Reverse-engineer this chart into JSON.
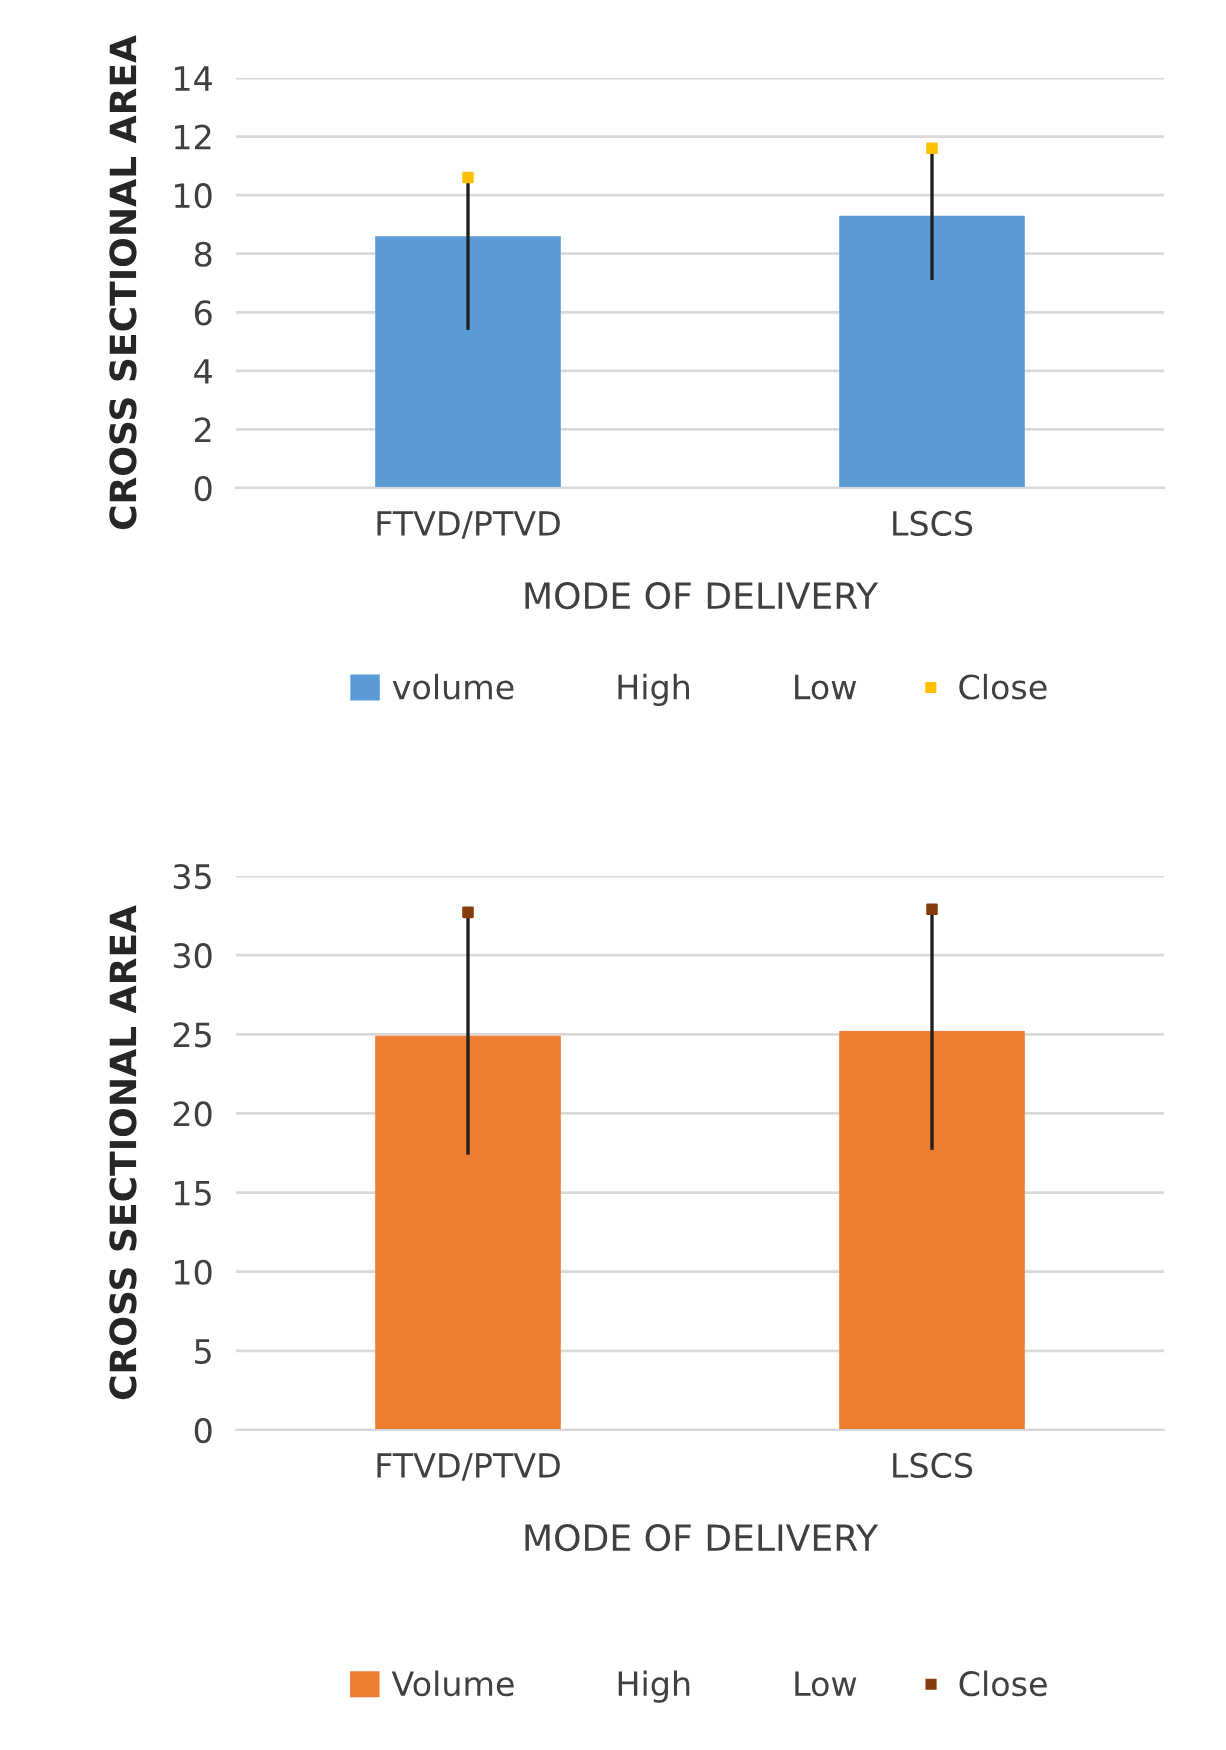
{
  "chart_data": [
    {
      "type": "bar",
      "xlabel": "MODE OF DELIVERY",
      "ylabel": "CROSS SECTIONAL AREA",
      "categories": [
        "FTVD/PTVD",
        "LSCS"
      ],
      "ylim": [
        0,
        14
      ],
      "yticks": [
        0,
        2,
        4,
        6,
        8,
        10,
        12,
        14
      ],
      "grid": "y",
      "legend": "bottom",
      "annotations": [
        "High",
        "Low"
      ],
      "series": [
        {
          "name": "volume",
          "color": "#5b9bd5",
          "values": [
            8.6,
            9.3
          ],
          "errors": [
            [
              5.4,
              10.6
            ],
            [
              7.1,
              11.6
            ]
          ]
        },
        {
          "name": "Close",
          "type": "scatter",
          "marker": "square",
          "color": "#ffc000",
          "values": [
            10.6,
            11.6
          ]
        }
      ]
    },
    {
      "type": "bar",
      "xlabel": "MODE OF DELIVERY",
      "ylabel": "CROSS SECTIONAL AREA",
      "categories": [
        "FTVD/PTVD",
        "LSCS"
      ],
      "ylim": [
        0,
        35
      ],
      "yticks": [
        0,
        5,
        10,
        15,
        20,
        25,
        30,
        35
      ],
      "grid": "y",
      "legend": "bottom",
      "annotations": [
        "High",
        "Low"
      ],
      "series": [
        {
          "name": "Volume",
          "color": "#ed7d31",
          "values": [
            24.9,
            25.2
          ],
          "errors": [
            [
              17.4,
              32.7
            ],
            [
              17.7,
              32.9
            ]
          ]
        },
        {
          "name": "Close",
          "type": "scatter",
          "marker": "square",
          "color": "#843c0c",
          "values": [
            32.7,
            32.9
          ]
        }
      ]
    }
  ]
}
